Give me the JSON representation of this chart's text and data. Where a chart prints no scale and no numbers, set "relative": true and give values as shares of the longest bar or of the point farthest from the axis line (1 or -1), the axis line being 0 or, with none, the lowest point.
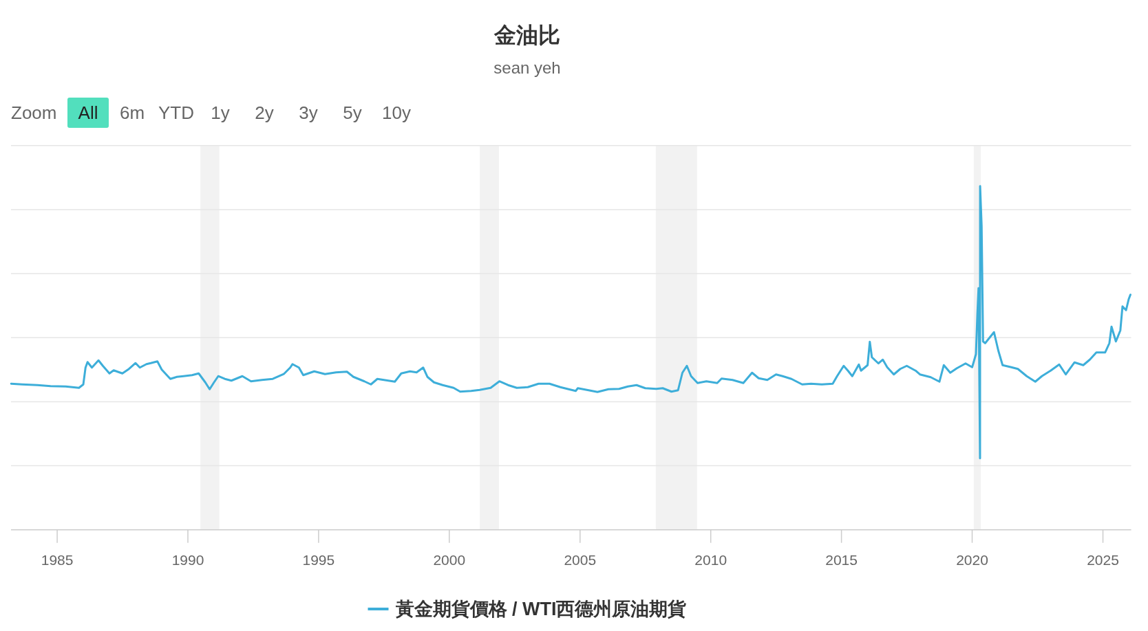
{
  "chart_data": {
    "type": "line",
    "title": "金油比",
    "subtitle": "sean yeh",
    "annotations": [
      "Zoom",
      "All",
      "6m",
      "YTD",
      "1y",
      "2y",
      "3y",
      "5y",
      "10y"
    ],
    "relative": true,
    "grid": "y",
    "legend": "bottom",
    "xlim": [
      "1983-03-28",
      "2026-01-30"
    ],
    "xticks": [
      "1985",
      "1990",
      "1995",
      "2000",
      "2005",
      "2010",
      "2015",
      "2020",
      "2025"
    ],
    "bands": [
      {
        "axis": "x",
        "from": "1990-06-25",
        "to": "1991-03-16",
        "color": "#f2f2f2"
      },
      {
        "axis": "x",
        "from": "2001-03-03",
        "to": "2001-11-25",
        "color": "#f2f2f2"
      },
      {
        "axis": "x",
        "from": "2007-11-25",
        "to": "2009-06-24",
        "color": "#f2f2f2"
      },
      {
        "axis": "x",
        "from": "2020-01-23",
        "to": "2020-05-01",
        "color": "#f2f2f2"
      }
    ],
    "x": [
      "1983-03-30",
      "1983-09",
      "1984-04",
      "1984-10",
      "1985-05",
      "1985-11",
      "1986-01",
      "1986-02",
      "1986-03",
      "1986-05",
      "1986-08",
      "1986-10",
      "1987-01",
      "1987-03",
      "1987-07",
      "1987-10",
      "1988-01",
      "1988-03",
      "1988-06",
      "1988-08",
      "1988-11",
      "1989-01",
      "1989-05",
      "1989-08",
      "1989-11",
      "1990-03",
      "1990-06",
      "1990-09",
      "1990-11",
      "1991-01",
      "1991-03",
      "1991-06",
      "1991-09",
      "1992-02",
      "1992-06",
      "1992-11",
      "1993-04",
      "1993-09",
      "1993-12",
      "1994-01",
      "1994-04",
      "1994-06",
      "1994-11",
      "1995-04",
      "1995-09",
      "1996-02",
      "1996-05",
      "1996-10",
      "1997-01",
      "1997-04",
      "1997-09",
      "1997-12",
      "1998-03",
      "1998-07",
      "1998-10",
      "1999-01",
      "1999-03",
      "1999-06",
      "1999-10",
      "2000-03",
      "2000-06",
      "2000-11",
      "2001-03",
      "2001-08",
      "2001-12",
      "2002-04",
      "2002-08",
      "2003-01",
      "2003-06",
      "2003-11",
      "2004-04",
      "2004-11",
      "2004-12",
      "2005-05",
      "2005-09",
      "2006-02",
      "2006-07",
      "2006-11",
      "2007-03",
      "2007-07",
      "2007-12",
      "2008-03",
      "2008-07",
      "2008-10",
      "2008-12",
      "2009-02",
      "2009-04",
      "2009-07",
      "2009-11",
      "2010-04",
      "2010-06",
      "2010-11",
      "2011-04",
      "2011-08",
      "2011-11",
      "2012-03",
      "2012-07",
      "2012-10",
      "2013-02",
      "2013-07",
      "2013-11",
      "2014-04",
      "2014-09",
      "2014-11",
      "2015-02",
      "2015-04",
      "2015-06",
      "2015-09",
      "2015-10",
      "2016-01",
      "2016-02",
      "2016-03",
      "2016-06",
      "2016-08",
      "2016-10",
      "2017-01",
      "2017-04",
      "2017-07",
      "2017-11",
      "2018-01",
      "2018-06",
      "2018-10",
      "2018-12",
      "2019-03",
      "2019-06",
      "2019-10",
      "2020-01",
      "2020-02-23",
      "2020-03-14",
      "2020-03-30",
      "2020-04-20",
      "2020-04-21",
      "2020-05-12",
      "2020-06-01",
      "2020-07",
      "2020-11",
      "2021-01",
      "2021-03",
      "2021-07",
      "2021-10",
      "2022-02",
      "2022-06",
      "2022-09",
      "2023-01",
      "2023-05",
      "2023-08",
      "2023-12",
      "2024-04",
      "2024-07",
      "2024-10",
      "2025-02",
      "2025-04",
      "2025-05",
      "2025-07",
      "2025-09",
      "2025-10",
      "2025-11-20",
      "2025-12-27",
      "2026-01-20"
    ],
    "series": [
      {
        "name": "黃金期貨價格 / WTI西德州原油期貨",
        "color": "#3daed9",
        "values": [
          0.425,
          0.423,
          0.421,
          0.418,
          0.417,
          0.413,
          0.423,
          0.472,
          0.488,
          0.472,
          0.493,
          0.477,
          0.455,
          0.464,
          0.455,
          0.468,
          0.485,
          0.472,
          0.482,
          0.485,
          0.49,
          0.466,
          0.439,
          0.445,
          0.447,
          0.45,
          0.455,
          0.429,
          0.409,
          0.429,
          0.447,
          0.439,
          0.434,
          0.447,
          0.432,
          0.436,
          0.439,
          0.453,
          0.472,
          0.482,
          0.472,
          0.45,
          0.461,
          0.453,
          0.458,
          0.46,
          0.445,
          0.432,
          0.423,
          0.439,
          0.434,
          0.431,
          0.455,
          0.461,
          0.458,
          0.472,
          0.445,
          0.429,
          0.421,
          0.413,
          0.402,
          0.404,
          0.407,
          0.413,
          0.432,
          0.421,
          0.413,
          0.415,
          0.425,
          0.425,
          0.415,
          0.404,
          0.412,
          0.406,
          0.401,
          0.409,
          0.41,
          0.417,
          0.421,
          0.412,
          0.41,
          0.412,
          0.402,
          0.406,
          0.457,
          0.477,
          0.447,
          0.427,
          0.432,
          0.427,
          0.44,
          0.436,
          0.427,
          0.457,
          0.441,
          0.436,
          0.452,
          0.447,
          0.439,
          0.423,
          0.425,
          0.423,
          0.425,
          0.447,
          0.477,
          0.463,
          0.447,
          0.481,
          0.463,
          0.479,
          0.547,
          0.502,
          0.484,
          0.495,
          0.473,
          0.452,
          0.468,
          0.477,
          0.463,
          0.452,
          0.444,
          0.431,
          0.479,
          0.457,
          0.47,
          0.484,
          0.473,
          0.511,
          0.628,
          0.703,
          0.208,
          1.0,
          0.885,
          0.548,
          0.543,
          0.575,
          0.521,
          0.479,
          0.473,
          0.468,
          0.447,
          0.431,
          0.447,
          0.463,
          0.481,
          0.452,
          0.487,
          0.479,
          0.495,
          0.516,
          0.516,
          0.543,
          0.591,
          0.548,
          0.58,
          0.65,
          0.639,
          0.671,
          0.684
        ]
      }
    ]
  }
}
